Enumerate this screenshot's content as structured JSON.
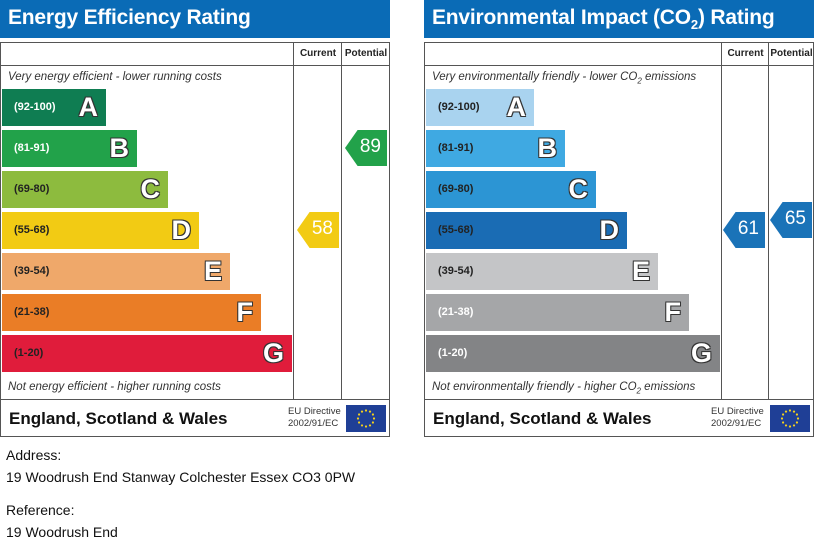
{
  "chart_data": [
    {
      "type": "bar",
      "title": "Energy Efficiency Rating",
      "top_caption": "Very energy efficient - lower running costs",
      "bottom_caption": "Not energy efficient - higher running costs",
      "columns": [
        "Current",
        "Potential"
      ],
      "bands": [
        {
          "range": "(92-100)",
          "letter": "A",
          "color": "#0f7d52",
          "text_color": "#ffffff"
        },
        {
          "range": "(81-91)",
          "letter": "B",
          "color": "#22a24a",
          "text_color": "#ffffff"
        },
        {
          "range": "(69-80)",
          "letter": "C",
          "color": "#8dbb3e",
          "text_color": "#222222"
        },
        {
          "range": "(55-68)",
          "letter": "D",
          "color": "#f2cb14",
          "text_color": "#222222"
        },
        {
          "range": "(39-54)",
          "letter": "E",
          "color": "#efa86a",
          "text_color": "#222222"
        },
        {
          "range": "(21-38)",
          "letter": "F",
          "color": "#ea7d26",
          "text_color": "#222222"
        },
        {
          "range": "(1-20)",
          "letter": "G",
          "color": "#e01c3b",
          "text_color": "#222222"
        }
      ],
      "current": {
        "value": 58,
        "color": "#f2cb14"
      },
      "potential": {
        "value": 89,
        "color": "#22a24a"
      },
      "region": "England, Scotland & Wales",
      "eu_directive": [
        "EU Directive",
        "2002/91/EC"
      ]
    },
    {
      "type": "bar",
      "title": "Environmental Impact (CO",
      "title_sub": "2",
      "title_end": ") Rating",
      "top_caption": "Very environmentally friendly - lower CO",
      "top_caption_end": " emissions",
      "bottom_caption": "Not environmentally friendly - higher CO",
      "bottom_caption_end": " emissions",
      "caption_sub": "2",
      "columns": [
        "Current",
        "Potential"
      ],
      "bands": [
        {
          "range": "(92-100)",
          "letter": "A",
          "color": "#a9d3ef",
          "text_color": "#222222"
        },
        {
          "range": "(81-91)",
          "letter": "B",
          "color": "#3fa9e2",
          "text_color": "#222222"
        },
        {
          "range": "(69-80)",
          "letter": "C",
          "color": "#2c95d4",
          "text_color": "#222222"
        },
        {
          "range": "(55-68)",
          "letter": "D",
          "color": "#1a6cb4",
          "text_color": "#222222"
        },
        {
          "range": "(39-54)",
          "letter": "E",
          "color": "#c4c5c7",
          "text_color": "#222222"
        },
        {
          "range": "(21-38)",
          "letter": "F",
          "color": "#a5a6a8",
          "text_color": "#ffffff"
        },
        {
          "range": "(1-20)",
          "letter": "G",
          "color": "#838486",
          "text_color": "#ffffff"
        }
      ],
      "current": {
        "value": 61,
        "color": "#1a73b8"
      },
      "potential": {
        "value": 65,
        "color": "#1a73b8"
      },
      "region": "England, Scotland & Wales",
      "eu_directive": [
        "EU Directive",
        "2002/91/EC"
      ]
    }
  ],
  "details": {
    "address_label": "Address:",
    "address": "19 Woodrush End Stanway Colchester Essex CO3 0PW",
    "reference_label": "Reference:",
    "reference": "19 Woodrush End"
  }
}
